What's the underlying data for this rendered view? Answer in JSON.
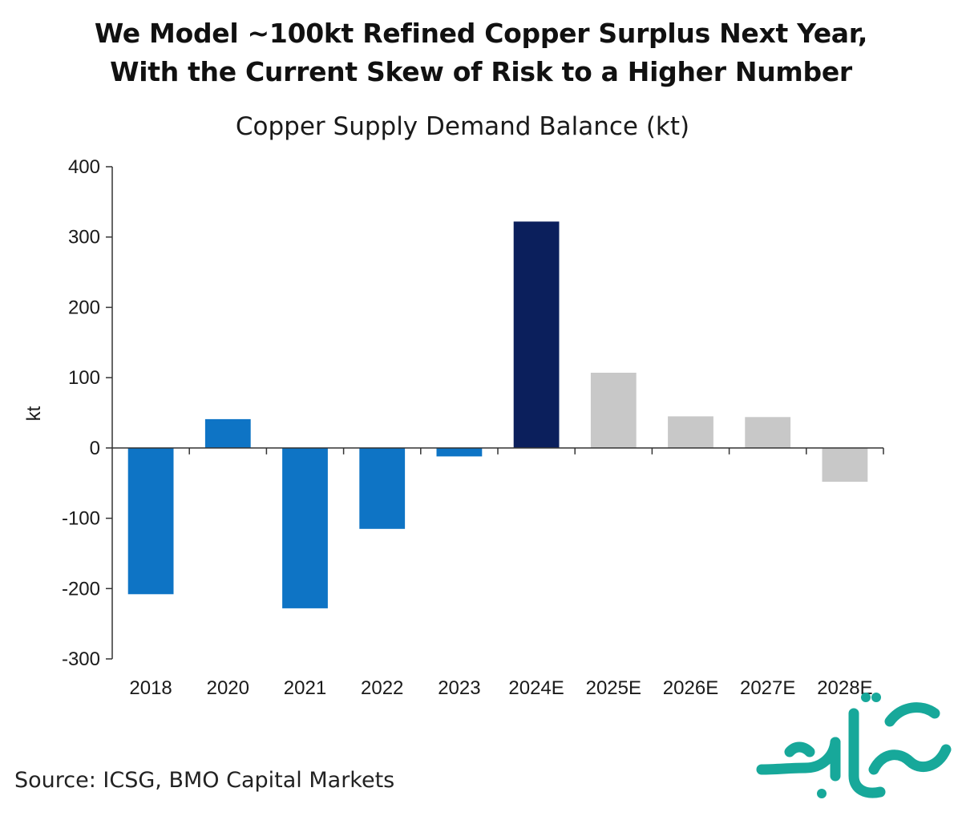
{
  "headline": {
    "line1": "We Model ~100kt Refined Copper Surplus Next Year,",
    "line2": "With the Current Skew of Risk to a Higher Number"
  },
  "source": "Source: ICSG, BMO Capital Markets",
  "watermark": {
    "text": "صفحه اقتصاد",
    "color": "#17a89a"
  },
  "chart_data": {
    "type": "bar",
    "title": "Copper Supply Demand Balance (kt)",
    "xlabel": "",
    "ylabel": "kt",
    "ylim": [
      -300,
      400
    ],
    "yticks": [
      400,
      300,
      200,
      100,
      0,
      -100,
      -200,
      -300
    ],
    "categories": [
      "2018",
      "2020",
      "2021",
      "2022",
      "2023",
      "2024E",
      "2025E",
      "2026E",
      "2027E",
      "2028E"
    ],
    "values": [
      -208,
      41,
      -228,
      -115,
      -12,
      322,
      107,
      45,
      44,
      -48
    ],
    "bar_colors": [
      "#0e74c5",
      "#0e74c5",
      "#0e74c5",
      "#0e74c5",
      "#0e74c5",
      "#0b1f5c",
      "#c8c8c8",
      "#c8c8c8",
      "#c8c8c8",
      "#c8c8c8"
    ],
    "grid": false,
    "legend": "none"
  }
}
